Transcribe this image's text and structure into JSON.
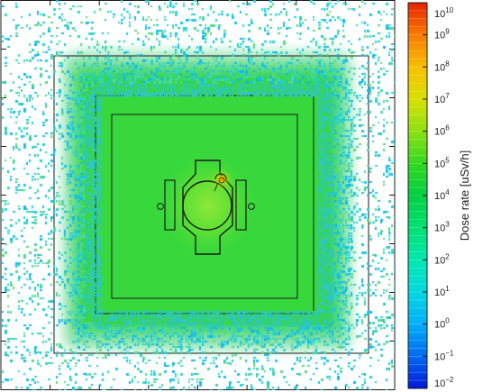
{
  "chart_data": {
    "type": "heatmap",
    "title": "",
    "xlabel": "",
    "ylabel": "",
    "colorbar": {
      "label": "Dose rate [uSv/h]",
      "scale": "log",
      "range": [
        0.01,
        10000000000.0
      ],
      "ticks": [
        {
          "base": "10",
          "exp": "10",
          "value": 10000000000.0
        },
        {
          "base": "10",
          "exp": "9",
          "value": 1000000000.0
        },
        {
          "base": "10",
          "exp": "8",
          "value": 100000000.0
        },
        {
          "base": "10",
          "exp": "7",
          "value": 10000000.0
        },
        {
          "base": "10",
          "exp": "6",
          "value": 1000000.0
        },
        {
          "base": "10",
          "exp": "5",
          "value": 100000.0
        },
        {
          "base": "10",
          "exp": "4",
          "value": 10000.0
        },
        {
          "base": "10",
          "exp": "3",
          "value": 1000.0
        },
        {
          "base": "10",
          "exp": "2",
          "value": 100.0
        },
        {
          "base": "10",
          "exp": "1",
          "value": 10.0
        },
        {
          "base": "10",
          "exp": "0",
          "value": 1.0
        },
        {
          "base": "10",
          "exp": "−1",
          "value": 0.1
        },
        {
          "base": "10",
          "exp": "−2",
          "value": 0.01
        }
      ],
      "colors": [
        "#0018d8",
        "#0068f0",
        "#00b0f8",
        "#00d8e0",
        "#00e8b0",
        "#00e070",
        "#00d040",
        "#30d820",
        "#90e010",
        "#d8e000",
        "#f8c000",
        "#f87800",
        "#e82000"
      ]
    },
    "regions": [
      {
        "name": "outer background",
        "dose_log10": 1.0,
        "color": "#12c8e4"
      },
      {
        "name": "shield area",
        "dose_log10": 4.0,
        "color": "#35d83a"
      },
      {
        "name": "central core",
        "dose_log10": 4.4,
        "color": "#4fe02e"
      },
      {
        "name": "hot spot",
        "dose_log10": 6.3,
        "color": "#e8c000"
      }
    ]
  }
}
